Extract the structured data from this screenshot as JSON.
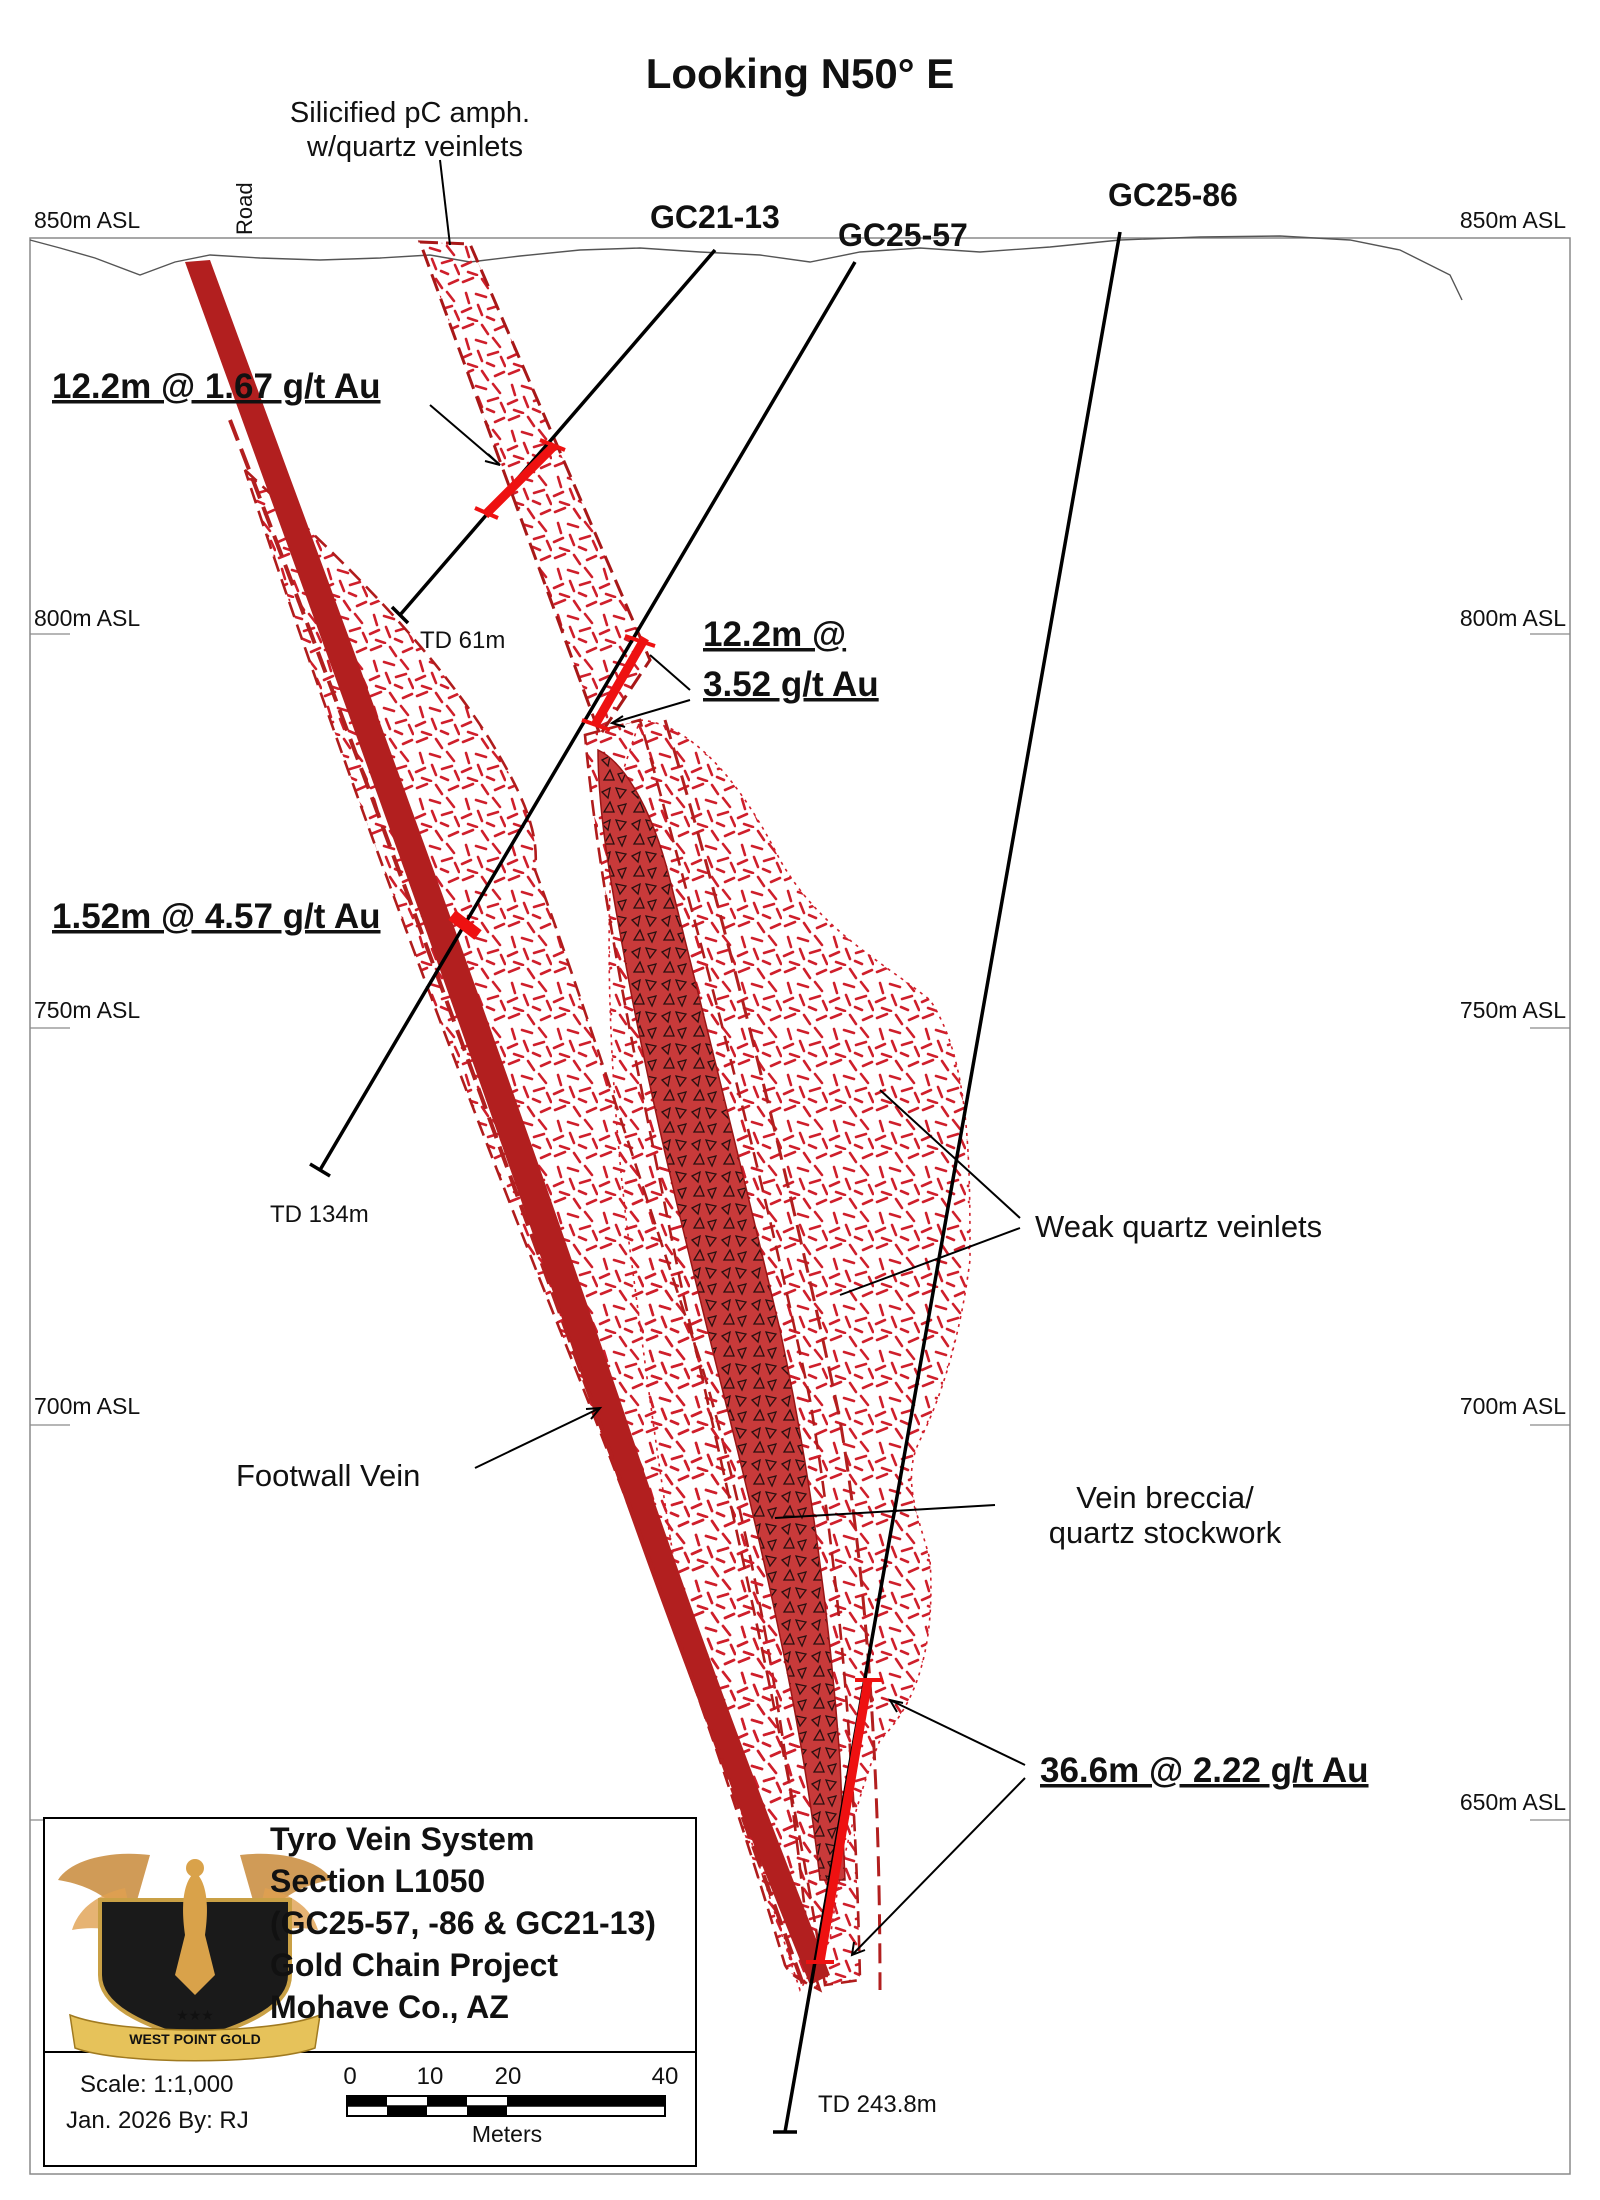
{
  "view_direction": "Looking N50° E",
  "elevation_labels": [
    "850m ASL",
    "800m ASL",
    "750m ASL",
    "700m ASL",
    "650m ASL"
  ],
  "road_label": "Road",
  "unit_label": {
    "line1": "Silicified pС amph.",
    "line2": "w/quartz veinlets"
  },
  "drillholes": [
    {
      "id": "GC21-13",
      "td": "TD 61m"
    },
    {
      "id": "GC25-57",
      "td": "TD 134m"
    },
    {
      "id": "GC25-86",
      "td": "TD 243.8m"
    }
  ],
  "intercepts": {
    "a": "12.2m @ 1.67 g/t Au",
    "b_line1": "12.2m @",
    "b_line2": "3.52 g/t Au",
    "c": "1.52m @ 4.57 g/t Au",
    "d": "36.6m @ 2.22 g/t Au"
  },
  "annotations": {
    "weak": "Weak quartz veinlets",
    "footwall": "Footwall Vein",
    "breccia_line1": "Vein breccia/",
    "breccia_line2": "quartz stockwork"
  },
  "title_block": {
    "line1": "Tyro Vein System",
    "line2": "Section L1050",
    "line3": "(GC25-57, -86 & GC21-13)",
    "line4": "Gold Chain Project",
    "line5": "Mohave Co., AZ",
    "logo_text": "WEST POINT GOLD",
    "scale": "Scale: 1:1,000",
    "date": "Jan. 2026  By: RJ",
    "scalebar_ticks": [
      "0",
      "10",
      "20",
      "40"
    ],
    "scalebar_unit": "Meters"
  },
  "colors": {
    "vein_red": "#b21f1f",
    "dash_red": "#d11f2a",
    "intercept_red": "#ee1111",
    "stockwork_fill": "#c83a3a",
    "frame": "#8a8a8a"
  }
}
